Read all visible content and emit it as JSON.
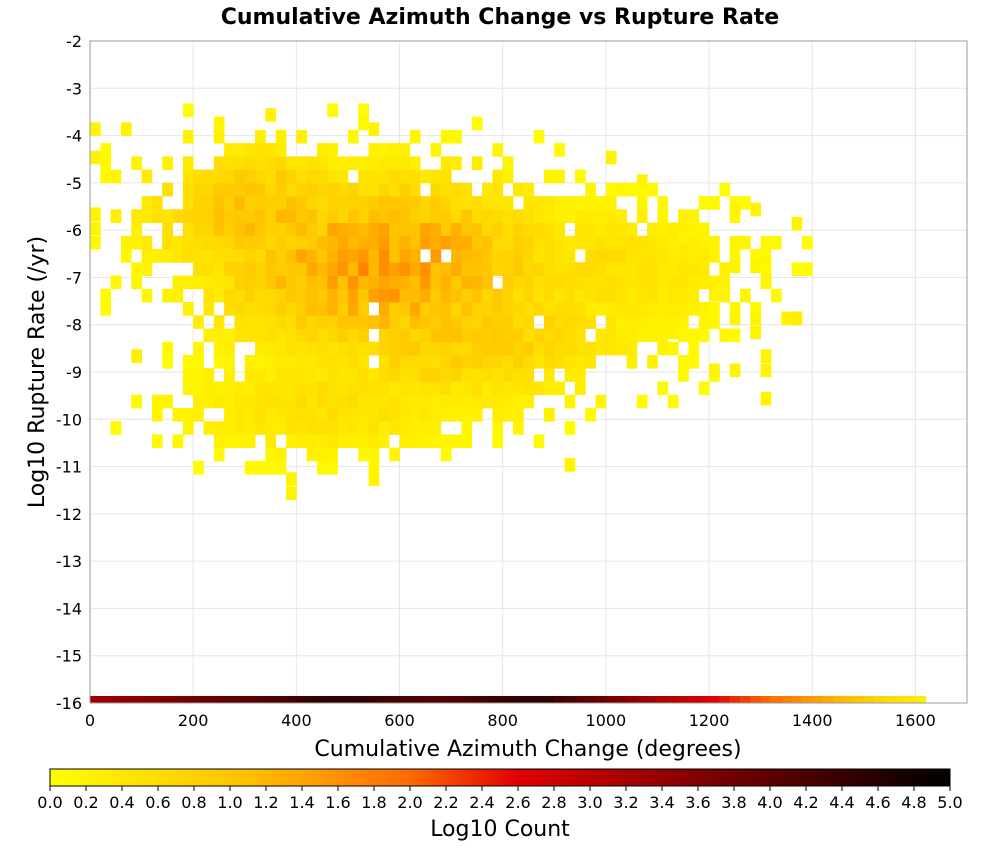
{
  "chart_data": {
    "type": "heatmap",
    "title": "Cumulative Azimuth Change vs Rupture Rate",
    "xlabel": "Cumulative Azimuth Change (degrees)",
    "ylabel": "Log10 Rupture Rate (/yr)",
    "xlim": [
      0,
      1700
    ],
    "ylim": [
      -16,
      -2
    ],
    "x_ticks": [
      0,
      200,
      400,
      600,
      800,
      1000,
      1200,
      1400,
      1600
    ],
    "y_ticks": [
      -2,
      -3,
      -4,
      -5,
      -6,
      -7,
      -8,
      -9,
      -10,
      -11,
      -12,
      -13,
      -14,
      -15,
      -16
    ],
    "grid": true,
    "bin_width_x": 20,
    "bin_height_y": 0.28,
    "colorbar": {
      "label": "Log10 Count",
      "range": [
        0.0,
        5.0
      ],
      "ticks": [
        "0.0",
        "0.2",
        "0.4",
        "0.6",
        "0.8",
        "1.0",
        "1.2",
        "1.4",
        "1.6",
        "1.8",
        "2.0",
        "2.2",
        "2.4",
        "2.6",
        "2.8",
        "3.0",
        "3.2",
        "3.4",
        "3.6",
        "3.8",
        "4.0",
        "4.2",
        "4.4",
        "4.6",
        "4.8",
        "5.0"
      ],
      "colors": [
        "#ffff00",
        "#ffa500",
        "#ff0000",
        "#800000",
        "#000000"
      ]
    },
    "clusters": [
      {
        "x": 560,
        "y": -6.9,
        "sx": 230,
        "sy": 1.3,
        "peak": 1.45
      },
      {
        "x": 320,
        "y": -5.8,
        "sx": 160,
        "sy": 1.0,
        "peak": 1.05
      },
      {
        "x": 700,
        "y": -8.3,
        "sx": 230,
        "sy": 1.1,
        "peak": 0.9
      },
      {
        "x": 960,
        "y": -7.0,
        "sx": 200,
        "sy": 1.0,
        "peak": 0.55
      },
      {
        "x": 450,
        "y": -9.8,
        "sx": 200,
        "sy": 0.8,
        "peak": 0.55
      }
    ],
    "outlier_cells": [
      {
        "x": 0,
        "y": -4.0,
        "v": 0.2
      },
      {
        "x": 0,
        "y": -4.6,
        "v": 0.2
      },
      {
        "x": 0,
        "y": -5.8,
        "v": 0.2
      },
      {
        "x": 0,
        "y": -6.1,
        "v": 0.2
      },
      {
        "x": 80,
        "y": -8.8,
        "v": 0.3
      },
      {
        "x": 60,
        "y": -4.0,
        "v": 0.2
      },
      {
        "x": 340,
        "y": -3.7,
        "v": 0.2
      },
      {
        "x": 540,
        "y": -4.0,
        "v": 0.2
      },
      {
        "x": 1000,
        "y": -4.6,
        "v": 0.2
      },
      {
        "x": 1060,
        "y": -5.1,
        "v": 0.2
      },
      {
        "x": 1240,
        "y": -5.7,
        "v": 0.2
      },
      {
        "x": 1280,
        "y": -5.7,
        "v": 0.2
      },
      {
        "x": 1360,
        "y": -6.0,
        "v": 0.2
      },
      {
        "x": 1240,
        "y": -6.9,
        "v": 0.2
      },
      {
        "x": 1280,
        "y": -6.9,
        "v": 0.2
      },
      {
        "x": 1300,
        "y": -7.2,
        "v": 0.2
      },
      {
        "x": 1240,
        "y": -8.0,
        "v": 0.2
      },
      {
        "x": 1280,
        "y": -8.0,
        "v": 0.2
      },
      {
        "x": 1340,
        "y": -8.0,
        "v": 0.2
      },
      {
        "x": 1360,
        "y": -8.0,
        "v": 0.3
      },
      {
        "x": 1280,
        "y": -8.3,
        "v": 0.2
      },
      {
        "x": 1300,
        "y": -8.8,
        "v": 0.2
      },
      {
        "x": 1200,
        "y": -9.1,
        "v": 0.2
      },
      {
        "x": 1240,
        "y": -9.1,
        "v": 0.2
      },
      {
        "x": 1300,
        "y": -9.1,
        "v": 0.2
      },
      {
        "x": 1300,
        "y": -9.7,
        "v": 0.2
      },
      {
        "x": 380,
        "y": -11.4,
        "v": 0.2
      },
      {
        "x": 380,
        "y": -11.7,
        "v": 0.2
      },
      {
        "x": 540,
        "y": -11.4,
        "v": 0.2
      },
      {
        "x": 920,
        "y": -11.1,
        "v": 0.2
      },
      {
        "x": 1220,
        "y": -7.5,
        "v": 0.2
      },
      {
        "x": 1200,
        "y": -7.5,
        "v": 0.2
      },
      {
        "x": 1160,
        "y": -6.0,
        "v": 0.2
      },
      {
        "x": 1140,
        "y": -6.3,
        "v": 0.2
      },
      {
        "x": 1120,
        "y": -8.3,
        "v": 0.2
      }
    ],
    "marginal_strip": {
      "y": -16,
      "x_from": 0,
      "x_to": 1620,
      "description_colors": "dark red at low azimuth, near black around 400-900, red to orange to yellow toward 1600"
    }
  }
}
